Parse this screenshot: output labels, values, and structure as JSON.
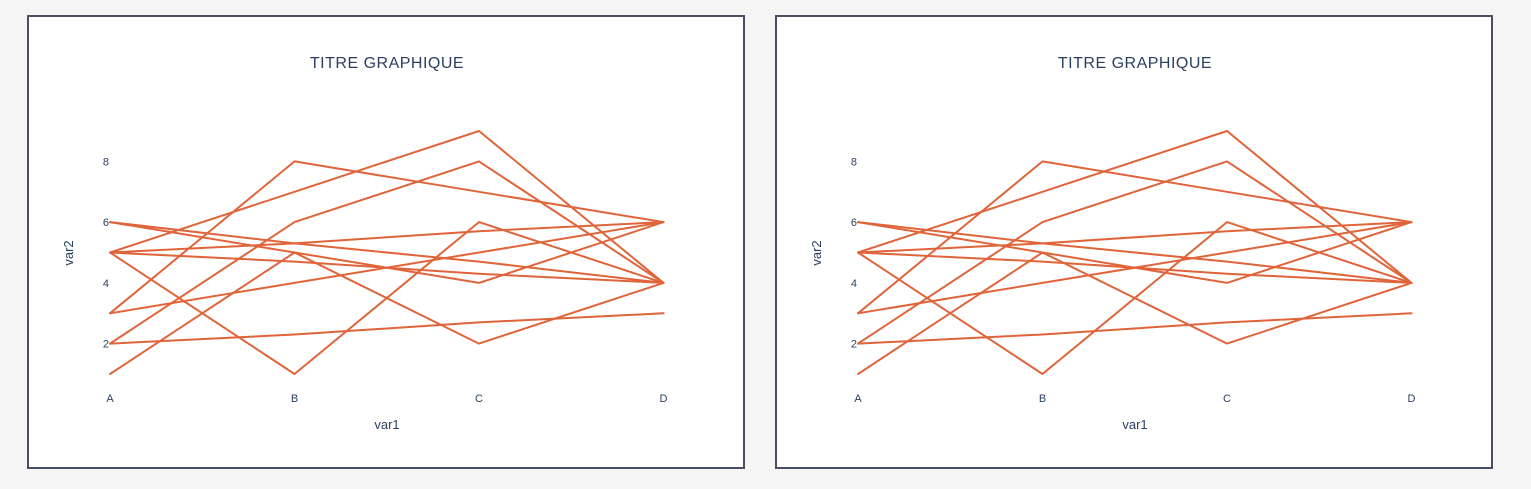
{
  "colors": {
    "line": "#e0643a",
    "text": "#2a3f5f",
    "background": "#f5f5f5",
    "panel_border": "#4a4e63"
  },
  "chart_data": [
    {
      "type": "line",
      "title": "TITRE GRAPHIQUE",
      "xlabel": "var1",
      "ylabel": "var2",
      "categories": [
        "A",
        "B",
        "C",
        "D"
      ],
      "yticks": [
        2,
        4,
        6,
        8
      ],
      "ylim": [
        1,
        9
      ],
      "grid": false,
      "legend": "none",
      "series": [
        {
          "values": [
            5,
            7,
            9,
            4
          ]
        },
        {
          "values": [
            3,
            8,
            7,
            6
          ]
        },
        {
          "values": [
            2,
            6,
            8,
            4
          ]
        },
        {
          "values": [
            1,
            5,
            2,
            4
          ]
        },
        {
          "values": [
            5,
            1,
            6,
            4
          ]
        },
        {
          "values": [
            6,
            5,
            4,
            6
          ]
        },
        {
          "values": [
            5,
            5.3,
            5.7,
            6
          ]
        },
        {
          "values": [
            3,
            4,
            5,
            6
          ]
        },
        {
          "values": [
            2,
            2.3,
            2.7,
            3
          ]
        },
        {
          "values": [
            6,
            5.3,
            4.7,
            4
          ]
        },
        {
          "values": [
            5,
            4.7,
            4.3,
            4
          ]
        }
      ]
    },
    {
      "type": "line",
      "title": "TITRE GRAPHIQUE",
      "xlabel": "var1",
      "ylabel": "var2",
      "categories": [
        "A",
        "B",
        "C",
        "D"
      ],
      "yticks": [
        2,
        4,
        6,
        8
      ],
      "ylim": [
        1,
        9
      ],
      "grid": false,
      "legend": "none",
      "series": [
        {
          "values": [
            5,
            7,
            9,
            4
          ]
        },
        {
          "values": [
            3,
            8,
            7,
            6
          ]
        },
        {
          "values": [
            2,
            6,
            8,
            4
          ]
        },
        {
          "values": [
            1,
            5,
            2,
            4
          ]
        },
        {
          "values": [
            5,
            1,
            6,
            4
          ]
        },
        {
          "values": [
            6,
            5,
            4,
            6
          ]
        },
        {
          "values": [
            5,
            5.3,
            5.7,
            6
          ]
        },
        {
          "values": [
            3,
            4,
            5,
            6
          ]
        },
        {
          "values": [
            2,
            2.3,
            2.7,
            3
          ]
        },
        {
          "values": [
            6,
            5.3,
            4.7,
            4
          ]
        },
        {
          "values": [
            5,
            4.7,
            4.3,
            4
          ]
        }
      ]
    }
  ]
}
